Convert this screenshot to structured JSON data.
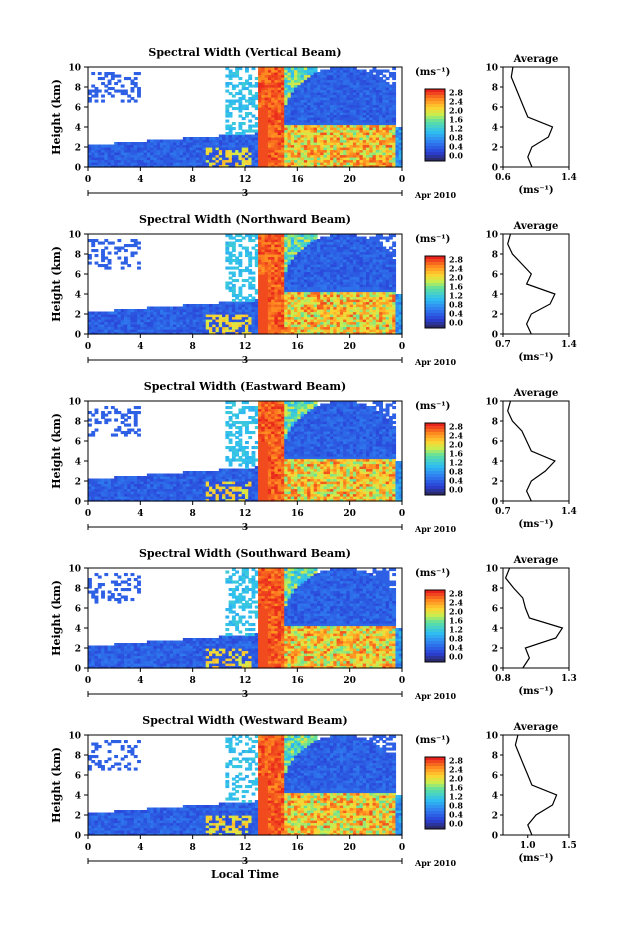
{
  "figure": {
    "x_axis_title": "Local Time",
    "date_label": "Apr 2010",
    "date_day": "3",
    "unit_label": "(ms⁻¹)",
    "colorbar_ticks": [
      "2.8",
      "2.4",
      "2.0",
      "1.6",
      "1.2",
      "0.8",
      "0.4",
      "0.0"
    ],
    "average_title": "Average",
    "average_xlabel": "(ms⁻¹)"
  },
  "chart_data": [
    {
      "type": "heatmap",
      "title": "Spectral Width (Vertical Beam)",
      "ylabel": "Height (km)",
      "xlabel": "",
      "x_ticks": [
        "0",
        "4",
        "8",
        "12",
        "16",
        "20",
        "0"
      ],
      "y_ticks": [
        "0",
        "2",
        "4",
        "6",
        "8",
        "10"
      ],
      "xlim": [
        0,
        24
      ],
      "ylim": [
        0,
        10
      ],
      "colorbar": {
        "label": "(ms⁻¹)",
        "range": [
          0.0,
          3.0
        ]
      },
      "average_profile": {
        "title": "Average",
        "x_ticks": [
          "0.6",
          "1.4"
        ],
        "xlim": [
          0.6,
          1.4
        ],
        "heights": [
          0,
          1,
          2,
          3,
          4,
          5,
          6,
          7,
          8,
          9,
          10
        ],
        "values": [
          0.95,
          0.9,
          0.95,
          1.15,
          1.2,
          0.9,
          0.85,
          0.8,
          0.75,
          0.7,
          0.72
        ]
      }
    },
    {
      "type": "heatmap",
      "title": "Spectral Width (Northward Beam)",
      "ylabel": "Height (km)",
      "xlabel": "",
      "x_ticks": [
        "0",
        "4",
        "8",
        "12",
        "16",
        "20",
        "0"
      ],
      "y_ticks": [
        "0",
        "2",
        "4",
        "6",
        "8",
        "10"
      ],
      "xlim": [
        0,
        24
      ],
      "ylim": [
        0,
        10
      ],
      "colorbar": {
        "label": "(ms⁻¹)",
        "range": [
          0.0,
          3.0
        ]
      },
      "average_profile": {
        "title": "Average",
        "x_ticks": [
          "0.7",
          "1.4"
        ],
        "xlim": [
          0.7,
          1.4
        ],
        "heights": [
          0,
          1,
          2,
          3,
          4,
          5,
          6,
          7,
          8,
          9,
          10
        ],
        "values": [
          1.0,
          0.95,
          1.0,
          1.2,
          1.25,
          0.95,
          1.0,
          0.9,
          0.8,
          0.75,
          0.78
        ]
      }
    },
    {
      "type": "heatmap",
      "title": "Spectral Width (Eastward Beam)",
      "ylabel": "Height (km)",
      "xlabel": "",
      "x_ticks": [
        "0",
        "4",
        "8",
        "12",
        "16",
        "20",
        "0"
      ],
      "y_ticks": [
        "0",
        "2",
        "4",
        "6",
        "8",
        "10"
      ],
      "xlim": [
        0,
        24
      ],
      "ylim": [
        0,
        10
      ],
      "colorbar": {
        "label": "(ms⁻¹)",
        "range": [
          0.0,
          3.0
        ]
      },
      "average_profile": {
        "title": "Average",
        "x_ticks": [
          "0.7",
          "1.4"
        ],
        "xlim": [
          0.7,
          1.4
        ],
        "heights": [
          0,
          1,
          2,
          3,
          4,
          5,
          6,
          7,
          8,
          9,
          10
        ],
        "values": [
          1.0,
          0.95,
          1.0,
          1.15,
          1.25,
          1.0,
          0.95,
          0.9,
          0.8,
          0.75,
          0.78
        ]
      }
    },
    {
      "type": "heatmap",
      "title": "Spectral Width (Southward Beam)",
      "ylabel": "Height (km)",
      "xlabel": "",
      "x_ticks": [
        "0",
        "4",
        "8",
        "12",
        "16",
        "20",
        "0"
      ],
      "y_ticks": [
        "0",
        "2",
        "4",
        "6",
        "8",
        "10"
      ],
      "xlim": [
        0,
        24
      ],
      "ylim": [
        0,
        10
      ],
      "colorbar": {
        "label": "(ms⁻¹)",
        "range": [
          0.0,
          3.0
        ]
      },
      "average_profile": {
        "title": "Average",
        "x_ticks": [
          "0.8",
          "1.3"
        ],
        "xlim": [
          0.8,
          1.3
        ],
        "heights": [
          0,
          1,
          2,
          3,
          4,
          5,
          6,
          7,
          8,
          9,
          10
        ],
        "values": [
          0.95,
          1.0,
          0.97,
          1.2,
          1.25,
          1.0,
          0.97,
          0.95,
          0.88,
          0.82,
          0.85
        ]
      }
    },
    {
      "type": "heatmap",
      "title": "Spectral Width (Westward Beam)",
      "ylabel": "Height (km)",
      "xlabel": "Local Time",
      "x_ticks": [
        "0",
        "4",
        "8",
        "12",
        "16",
        "20",
        "0"
      ],
      "y_ticks": [
        "0",
        "2",
        "4",
        "6",
        "8",
        "10"
      ],
      "xlim": [
        0,
        24
      ],
      "ylim": [
        0,
        10
      ],
      "colorbar": {
        "label": "(ms⁻¹)",
        "range": [
          0.0,
          3.0
        ]
      },
      "average_profile": {
        "title": "Average",
        "x_ticks": [
          "1.0",
          "1.5"
        ],
        "xlim": [
          0.7,
          1.5
        ],
        "heights": [
          0,
          1,
          2,
          3,
          4,
          5,
          6,
          7,
          8,
          9,
          10
        ],
        "values": [
          1.05,
          1.0,
          1.1,
          1.3,
          1.35,
          1.05,
          1.0,
          0.95,
          0.9,
          0.85,
          0.88
        ]
      }
    }
  ]
}
